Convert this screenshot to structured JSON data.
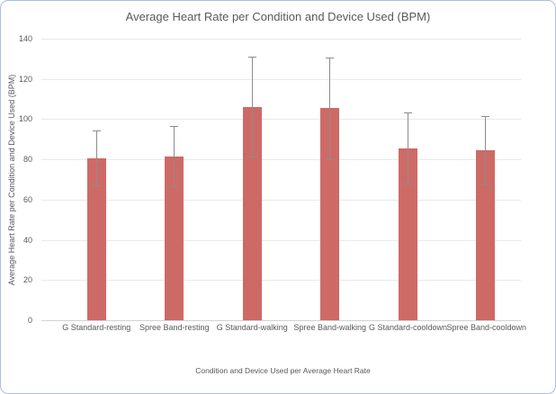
{
  "window": {
    "border_color": "#A9BEE1",
    "background_color": "#FFFFFF"
  },
  "colors": {
    "bar_fill": "#CE6A66",
    "error_bar": "#8C8C8C",
    "gridline": "#E9E9E9",
    "axis_line": "#D2D2D2",
    "text": "#595959"
  },
  "chart_data": {
    "type": "bar",
    "title": "Average Heart Rate per Condition and Device Used (BPM)",
    "xlabel": "Condition and Device Used per Average Heart Rate",
    "ylabel": "Average Heart Rate per Condition and Device Used (BPM)",
    "ylim": [
      0,
      140
    ],
    "yticks": [
      0,
      20,
      40,
      60,
      80,
      100,
      120,
      140
    ],
    "grid": true,
    "legend": false,
    "categories": [
      "G Standard-resting",
      "Spree Band-resting",
      "G Standard-walking",
      "Spree Band-walking",
      "G Standard-cooldown",
      "Spree Band-cooldown"
    ],
    "values": [
      80.5,
      81.5,
      106,
      105.5,
      85.5,
      84.5
    ],
    "error_low": [
      67,
      66.5,
      81.5,
      80,
      68,
      67.5
    ],
    "error_high": [
      94.5,
      96.5,
      131,
      130.5,
      103.5,
      101.5
    ]
  }
}
